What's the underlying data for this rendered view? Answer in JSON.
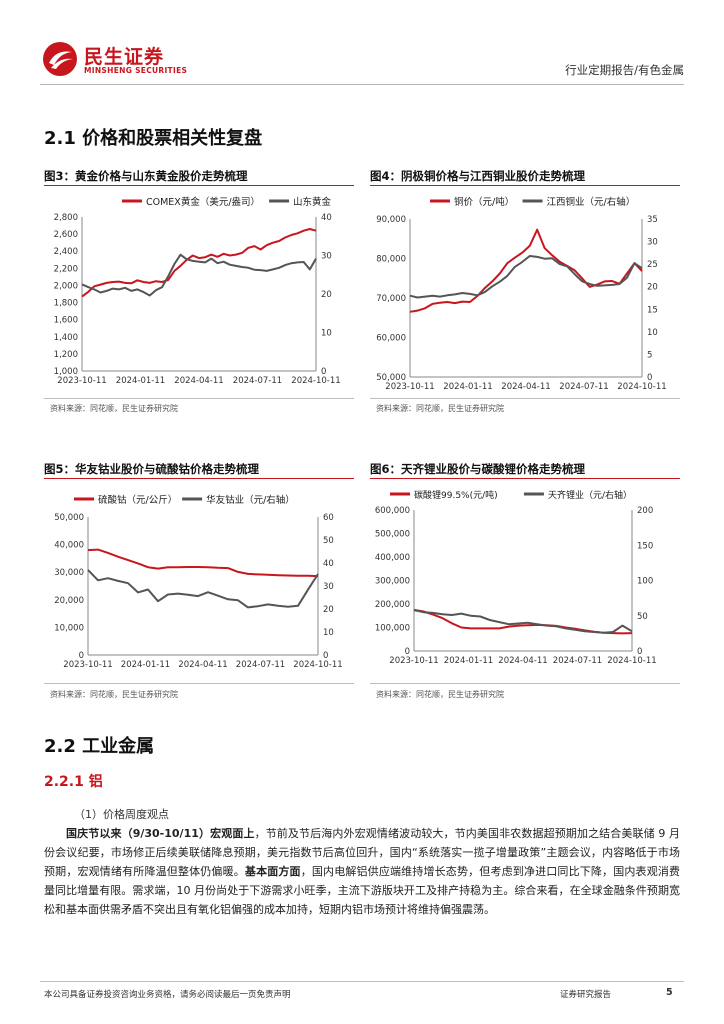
{
  "header": {
    "logo_cn": "民生证券",
    "logo_en": "MINSHENG SECURITIES",
    "report_type": "行业定期报告/有色金属"
  },
  "section_2_1": {
    "title": "2.1 价格和股票相关性复盘"
  },
  "figures": {
    "fig3": {
      "title": "图3：黄金价格与山东黄金股价走势梳理",
      "source": "资料来源：同花顺，民生证券研究院"
    },
    "fig4": {
      "title": "图4：阴极铜价格与江西铜业股价走势梳理",
      "source": "资料来源：同花顺，民生证券研究院"
    },
    "fig5": {
      "title": "图5：华友钴业股价与硫酸钴价格走势梳理",
      "source": "资料来源：同花顺，民生证券研究院"
    },
    "fig6": {
      "title": "图6：天齐锂业股价与碳酸锂价格走势梳理",
      "source": "资料来源：同花顺，民生证券研究院"
    }
  },
  "chart_data": [
    {
      "type": "line",
      "id": "fig3",
      "x_ticks": [
        "2023-10-11",
        "2024-01-11",
        "2024-04-11",
        "2024-07-11",
        "2024-10-11"
      ],
      "y_left": {
        "min": 1000,
        "max": 2800,
        "ticks": [
          "1,000",
          "1,200",
          "1,400",
          "1,600",
          "1,800",
          "2,000",
          "2,200",
          "2,400",
          "2,600",
          "2,800"
        ]
      },
      "y_right": {
        "min": 0,
        "max": 40,
        "ticks": [
          "0",
          "10",
          "20",
          "30",
          "40"
        ]
      },
      "grid": false,
      "legend": "top",
      "series": [
        {
          "name": "COMEX黄金（美元/盎司）",
          "axis": "left",
          "color": "#c8161e",
          "values": [
            1870,
            1925,
            1990,
            2010,
            2030,
            2040,
            2045,
            2030,
            2025,
            2060,
            2040,
            2030,
            2050,
            2040,
            2065,
            2170,
            2230,
            2300,
            2350,
            2320,
            2330,
            2360,
            2335,
            2370,
            2350,
            2360,
            2380,
            2440,
            2460,
            2420,
            2470,
            2500,
            2520,
            2560,
            2590,
            2610,
            2640,
            2660,
            2640
          ]
        },
        {
          "name": "山东黄金",
          "axis": "right",
          "color": "#555555",
          "values": [
            22.5,
            21.8,
            21.2,
            20.4,
            20.8,
            21.4,
            21.2,
            21.6,
            20.8,
            21.2,
            20.5,
            19.6,
            21.0,
            21.8,
            24.6,
            27.8,
            30.2,
            29.0,
            28.6,
            28.4,
            28.2,
            29.2,
            28.0,
            28.4,
            27.6,
            27.3,
            27.0,
            26.8,
            26.3,
            26.2,
            26.0,
            26.4,
            26.8,
            27.5,
            28.0,
            28.2,
            28.3,
            26.4,
            29.2
          ]
        }
      ]
    },
    {
      "type": "line",
      "id": "fig4",
      "x_ticks": [
        "2023-10-11",
        "2024-01-11",
        "2024-04-11",
        "2024-07-11",
        "2024-10-11"
      ],
      "y_left": {
        "min": 50000,
        "max": 90000,
        "ticks": [
          "50,000",
          "60,000",
          "70,000",
          "80,000",
          "90,000"
        ]
      },
      "y_right": {
        "min": 0,
        "max": 35,
        "ticks": [
          "0",
          "5",
          "10",
          "15",
          "20",
          "25",
          "30",
          "35"
        ]
      },
      "grid": false,
      "legend": "top",
      "series": [
        {
          "name": "铜价（元/吨）",
          "axis": "left",
          "color": "#c8161e",
          "values": [
            66500,
            66800,
            67400,
            68500,
            68800,
            69000,
            68700,
            69100,
            69000,
            70500,
            72500,
            74200,
            76200,
            78800,
            80200,
            81500,
            83200,
            87300,
            82600,
            80800,
            79200,
            78100,
            77000,
            75000,
            72800,
            73400,
            74200,
            74300,
            73600,
            76200,
            78800,
            76800
          ]
        },
        {
          "name": "江西铜业（元/右轴）",
          "axis": "right",
          "color": "#555555",
          "values": [
            18.0,
            17.6,
            17.8,
            18.0,
            17.8,
            18.1,
            18.3,
            18.6,
            18.4,
            18.1,
            18.8,
            20.1,
            21.1,
            22.4,
            24.4,
            25.5,
            26.8,
            26.6,
            26.2,
            26.3,
            25.0,
            24.5,
            22.8,
            21.2,
            20.6,
            20.2,
            20.3,
            20.4,
            20.6,
            22.0,
            25.2,
            24.1
          ]
        }
      ]
    },
    {
      "type": "line",
      "id": "fig5",
      "x_ticks": [
        "2023-10-11",
        "2024-01-11",
        "2024-04-11",
        "2024-07-11",
        "2024-10-11"
      ],
      "y_left": {
        "min": 0,
        "max": 50000,
        "ticks": [
          "0",
          "10,000",
          "20,000",
          "30,000",
          "40,000",
          "50,000"
        ]
      },
      "y_right": {
        "min": 0,
        "max": 60,
        "ticks": [
          "0",
          "10",
          "20",
          "30",
          "40",
          "50",
          "60"
        ]
      },
      "grid": false,
      "legend": "top",
      "series": [
        {
          "name": "硫酸钴（元/公斤）",
          "axis": "left",
          "color": "#c8161e",
          "values": [
            38000,
            38200,
            37000,
            35600,
            34400,
            33200,
            31800,
            31300,
            31800,
            31800,
            31900,
            31900,
            31800,
            31600,
            31500,
            30100,
            29400,
            29200,
            29100,
            28900,
            28800,
            28700,
            28700,
            28600
          ]
        },
        {
          "name": "华友钴业（元/右轴）",
          "axis": "right",
          "color": "#555555",
          "values": [
            37,
            32.5,
            33.4,
            32.2,
            31.2,
            27.2,
            28.5,
            23.4,
            26.3,
            26.7,
            26.2,
            25.6,
            27.3,
            25.8,
            24.2,
            23.8,
            20.7,
            21.2,
            22.0,
            21.4,
            21.0,
            21.4,
            28.4,
            35.2
          ]
        }
      ]
    },
    {
      "type": "line",
      "id": "fig6",
      "x_ticks": [
        "2023-10-11",
        "2024-01-11",
        "2024-04-11",
        "2024-07-11",
        "2024-10-11"
      ],
      "y_left": {
        "min": 0,
        "max": 600000,
        "ticks": [
          "0",
          "100,000",
          "200,000",
          "300,000",
          "400,000",
          "500,000",
          "600,000"
        ]
      },
      "y_right": {
        "min": 0,
        "max": 200,
        "ticks": [
          "0",
          "50",
          "100",
          "150",
          "200"
        ]
      },
      "grid": false,
      "legend": "top",
      "series": [
        {
          "name": "碳酸锂99.5%(元/吨)",
          "axis": "left",
          "color": "#c8161e",
          "values": [
            175000,
            168000,
            155000,
            140000,
            118000,
            100000,
            96000,
            96000,
            96000,
            96000,
            104000,
            108000,
            110000,
            111000,
            110000,
            107000,
            100000,
            95000,
            88000,
            82000,
            78000,
            76000,
            75000,
            76000
          ]
        },
        {
          "name": "天齐锂业（元/右轴）",
          "axis": "right",
          "color": "#555555",
          "values": [
            58,
            55,
            54,
            52,
            51,
            53,
            50,
            49,
            44,
            41,
            38,
            39,
            40,
            38,
            36,
            35,
            32,
            30,
            28,
            27,
            26,
            27,
            36,
            28
          ]
        }
      ]
    }
  ],
  "section_2_2": {
    "title": "2.2 工业金属"
  },
  "section_2_2_1": {
    "title": "2.2.1 铝"
  },
  "para_label": "（1）价格周度观点",
  "paragraph": {
    "lead": "国庆节以来（9/30-10/11）宏观面上",
    "part1": "，节前及节后海内外宏观情绪波动较大，节内美国非农数据超预期加之结合美联储 9 月份会议纪要，市场修正后续美联储降息预期，美元指数节后高位回升，国内“系统落实一揽子增量政策”主题会议，内容略低于市场预期，宏观情绪有所降温但整体仍偏暖。",
    "lead2": "基本面方面",
    "part2": "，国内电解铝供应端维持增长态势，但考虑到净进口同比下降，国内表观消费量同比增量有限。需求端，10 月份尚处于下游需求小旺季，主流下游版块开工及排产持稳为主。综合来看，在全球金融条件预期宽松和基本面供需矛盾不突出且有氧化铝偏强的成本加持，短期内铝市场预计将维持偏强震荡。"
  },
  "footer": {
    "disclaimer": "本公司具备证券投资咨询业务资格，请务必阅读最后一页免责声明",
    "category": "证券研究报告",
    "page": "5"
  }
}
